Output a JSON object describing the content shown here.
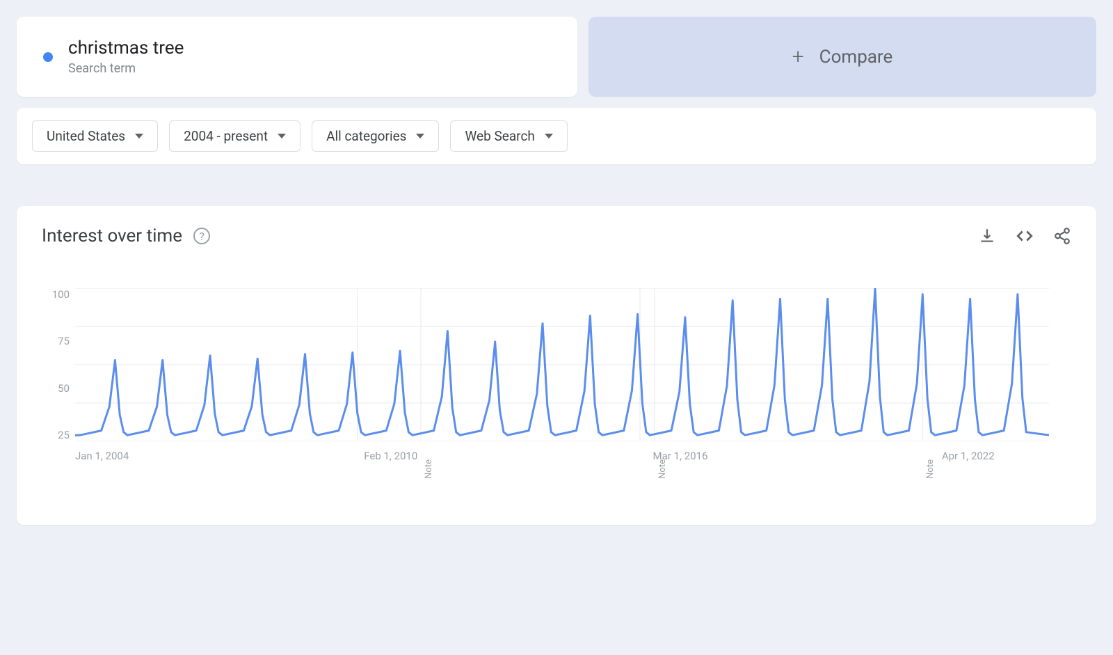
{
  "search_term": {
    "title": "christmas tree",
    "subtitle": "Search term",
    "dot_color": "#4285f4"
  },
  "compare": {
    "label": "Compare",
    "plus": "+",
    "bg_color": "#d3dcf0"
  },
  "filters": {
    "region": "United States",
    "time_range": "2004 - present",
    "category": "All categories",
    "search_type": "Web Search"
  },
  "chart": {
    "title": "Interest over time",
    "help": "?",
    "y_axis": {
      "max": 100,
      "ticks": [
        100,
        75,
        50,
        25
      ],
      "min": 0
    },
    "x_axis": {
      "labels": [
        {
          "text": "Jan 1, 2004",
          "pos_pct": 0
        },
        {
          "text": "Feb 1, 2010",
          "pos_pct": 29
        },
        {
          "text": "Mar 1, 2016",
          "pos_pct": 58
        },
        {
          "text": "Apr 1, 2022",
          "pos_pct": 87
        }
      ]
    },
    "notes": [
      {
        "text": "Note",
        "pos_pct": 35.5
      },
      {
        "text": "Note",
        "pos_pct": 59.5
      },
      {
        "text": "Note",
        "pos_pct": 87.0
      }
    ],
    "grid_color": "#e8eaed",
    "line_color": "#5b8def",
    "line_width": 3,
    "background_color": "#ffffff",
    "type": "line",
    "series": {
      "peaks": [
        53,
        53,
        56,
        54,
        57,
        58,
        59,
        72,
        65,
        77,
        82,
        83,
        81,
        92,
        93,
        93,
        100,
        96,
        93,
        96
      ],
      "baseline": 4,
      "years_start": 2004,
      "years_end": 2024
    }
  },
  "colors": {
    "page_bg": "#eef0f7",
    "card_bg": "#ffffff",
    "text_primary": "#202124",
    "text_secondary": "#5f6368",
    "text_muted": "#9aa0a6",
    "border": "#dadce0"
  }
}
